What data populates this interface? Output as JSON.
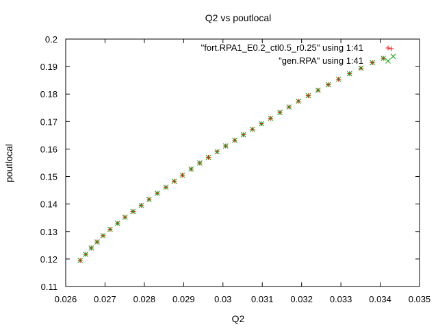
{
  "chart_data": {
    "type": "scatter",
    "title": "Q2 vs poutlocal",
    "xlabel": "Q2",
    "ylabel": "poutlocal",
    "xlim": [
      0.026,
      0.035
    ],
    "ylim": [
      0.11,
      0.2
    ],
    "x_ticks": [
      "0.026",
      "0.027",
      "0.028",
      "0.029",
      "0.03",
      "0.031",
      "0.032",
      "0.033",
      "0.034",
      "0.035"
    ],
    "y_ticks": [
      "0.11",
      "0.12",
      "0.13",
      "0.14",
      "0.15",
      "0.16",
      "0.17",
      "0.18",
      "0.19",
      "0.2"
    ],
    "grid": false,
    "legend_position": "top-right",
    "series": [
      {
        "name": "\"fort.RPA1_E0.2_ctl0.5_r0.25\" using 1:41",
        "marker": "plus",
        "color": "#ff0000",
        "x": [
          0.02637,
          0.02651,
          0.02665,
          0.0268,
          0.02695,
          0.02713,
          0.02732,
          0.02751,
          0.02771,
          0.02792,
          0.02812,
          0.02833,
          0.02855,
          0.02876,
          0.02897,
          0.02919,
          0.02941,
          0.02963,
          0.02985,
          0.03007,
          0.0303,
          0.03052,
          0.03075,
          0.03098,
          0.03121,
          0.03145,
          0.03168,
          0.03192,
          0.03217,
          0.03242,
          0.03268,
          0.03294,
          0.03322,
          0.03351,
          0.0338,
          0.03408,
          0.03428
        ],
        "y": [
          0.1195,
          0.1217,
          0.124,
          0.1262,
          0.1285,
          0.1308,
          0.133,
          0.1352,
          0.1373,
          0.1395,
          0.1417,
          0.1439,
          0.1461,
          0.1483,
          0.1505,
          0.1527,
          0.1549,
          0.157,
          0.159,
          0.1611,
          0.1632,
          0.1652,
          0.1672,
          0.1692,
          0.1712,
          0.1733,
          0.1753,
          0.1774,
          0.1794,
          0.1814,
          0.1834,
          0.1854,
          0.1874,
          0.1894,
          0.1914,
          0.193,
          0.1965
        ]
      },
      {
        "name": "\"gen.RPA\" using 1:41",
        "marker": "x",
        "color": "#00a000",
        "x": [
          0.02637,
          0.02651,
          0.02665,
          0.0268,
          0.02695,
          0.02713,
          0.02732,
          0.02751,
          0.02771,
          0.02792,
          0.02812,
          0.02833,
          0.02855,
          0.02876,
          0.02897,
          0.02919,
          0.02941,
          0.02963,
          0.02985,
          0.03007,
          0.0303,
          0.03052,
          0.03075,
          0.03098,
          0.03121,
          0.03145,
          0.03168,
          0.03192,
          0.03217,
          0.03242,
          0.03268,
          0.03294,
          0.03322,
          0.03351,
          0.0338,
          0.03408,
          0.03433
        ],
        "y": [
          0.1195,
          0.1217,
          0.124,
          0.1262,
          0.1285,
          0.1308,
          0.133,
          0.1352,
          0.1373,
          0.1395,
          0.1417,
          0.1439,
          0.1461,
          0.1483,
          0.1505,
          0.1527,
          0.1549,
          0.157,
          0.159,
          0.1611,
          0.1632,
          0.1652,
          0.1672,
          0.1692,
          0.1712,
          0.1733,
          0.1753,
          0.1774,
          0.1794,
          0.1814,
          0.1834,
          0.1854,
          0.1874,
          0.1894,
          0.1914,
          0.193,
          0.1937
        ]
      }
    ]
  }
}
